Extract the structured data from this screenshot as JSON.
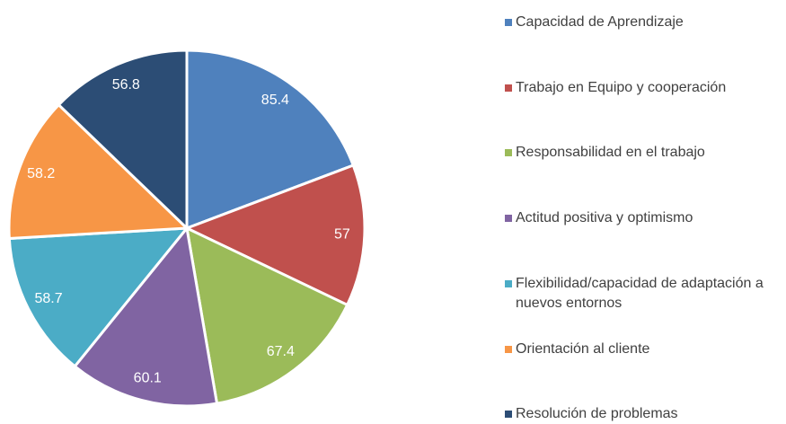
{
  "chart_data": {
    "type": "pie",
    "categories": [
      "Capacidad de Aprendizaje",
      "Trabajo en Equipo y cooperación",
      "Responsabilidad en el trabajo",
      "Actitud positiva y optimismo",
      "Flexibilidad/capacidad de adaptación a nuevos entornos",
      "Orientación al cliente",
      "Resolución de problemas"
    ],
    "values": [
      85.4,
      57,
      67.4,
      60.1,
      58.7,
      58.2,
      56.8
    ],
    "colors": [
      "#4f81bd",
      "#c0504d",
      "#9bbb59",
      "#8064a2",
      "#4bacc6",
      "#f79646",
      "#2c4d75"
    ],
    "legend": "right"
  }
}
